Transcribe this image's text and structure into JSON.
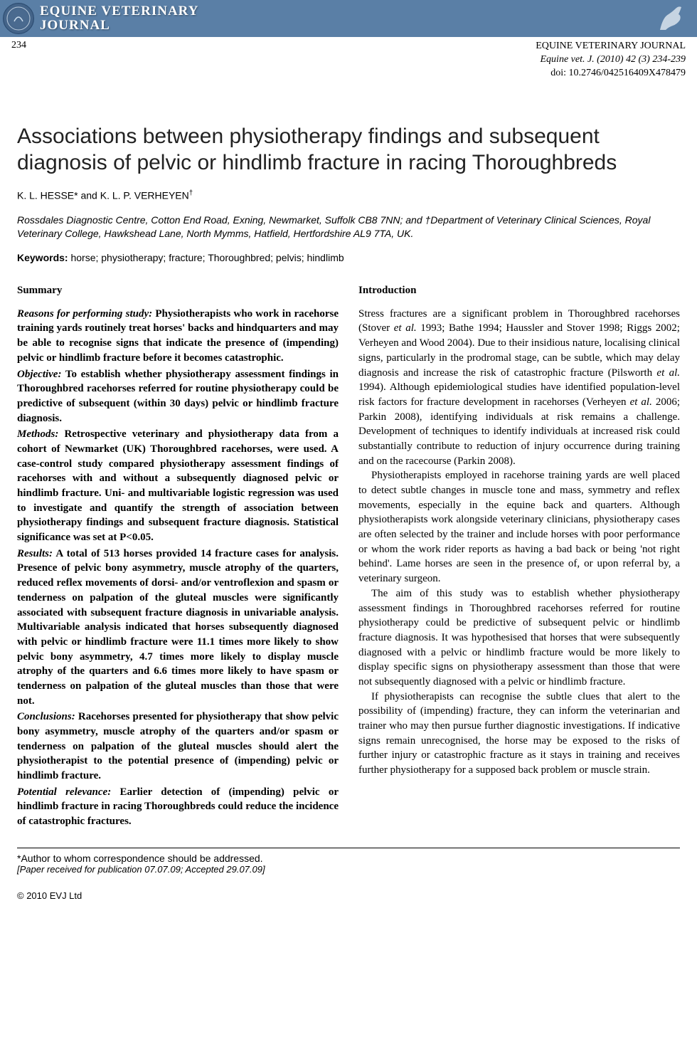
{
  "header": {
    "journal_title_line1": "EQUINE VETERINARY",
    "journal_title_line2": "JOURNAL"
  },
  "meta": {
    "page_number": "234",
    "journal_name": "EQUINE VETERINARY JOURNAL",
    "citation": "Equine vet. J. (2010) 42 (3) 234-239",
    "doi": "doi: 10.2746/042516409X478479"
  },
  "article": {
    "title": "Associations between physiotherapy findings and subsequent diagnosis of pelvic or hindlimb fracture in racing Thoroughbreds",
    "authors_html": "K. L. HESSE* and K. L. P. VERHEYEN†",
    "affiliations": "Rossdales Diagnostic Centre, Cotton End Road, Exning, Newmarket, Suffolk CB8 7NN; and †Department of Veterinary Clinical Sciences, Royal Veterinary College, Hawkshead Lane, North Mymms, Hatfield, Hertfordshire AL9 7TA, UK.",
    "keywords_label": "Keywords:",
    "keywords": " horse; physiotherapy; fracture; Thoroughbred; pelvis; hindlimb"
  },
  "summary": {
    "heading": "Summary",
    "items": [
      {
        "label": "Reasons for performing study:",
        "text": " Physiotherapists who work in racehorse training yards routinely treat horses' backs and hindquarters and may be able to recognise signs that indicate the presence of (impending) pelvic or hindlimb fracture before it becomes catastrophic."
      },
      {
        "label": "Objective:",
        "text": " To establish whether physiotherapy assessment findings in Thoroughbred racehorses referred for routine physiotherapy could be predictive of subsequent (within 30 days) pelvic or hindlimb fracture diagnosis."
      },
      {
        "label": "Methods:",
        "text": " Retrospective veterinary and physiotherapy data from a cohort of Newmarket (UK) Thoroughbred racehorses, were used. A case-control study compared physiotherapy assessment findings of racehorses with and without a subsequently diagnosed pelvic or hindlimb fracture. Uni- and multivariable logistic regression was used to investigate and quantify the strength of association between physiotherapy findings and subsequent fracture diagnosis. Statistical significance was set at P<0.05."
      },
      {
        "label": "Results:",
        "text": " A total of 513 horses provided 14 fracture cases for analysis. Presence of pelvic bony asymmetry, muscle atrophy of the quarters, reduced reflex movements of dorsi- and/or ventroflexion and spasm or tenderness on palpation of the gluteal muscles were significantly associated with subsequent fracture diagnosis in univariable analysis. Multivariable analysis indicated that horses subsequently diagnosed with pelvic or hindlimb fracture were 11.1 times more likely to show pelvic bony asymmetry, 4.7 times more likely to display muscle atrophy of the quarters and 6.6 times more likely to have spasm or tenderness on palpation of the gluteal muscles than those that were not."
      },
      {
        "label": "Conclusions:",
        "text": " Racehorses presented for physiotherapy that show pelvic bony asymmetry, muscle atrophy of the quarters and/or spasm or tenderness on palpation of the gluteal muscles should alert the physiotherapist to the potential presence of (impending) pelvic or hindlimb fracture."
      },
      {
        "label": "Potential relevance:",
        "text": " Earlier detection of (impending) pelvic or hindlimb fracture in racing Thoroughbreds could reduce the incidence of catastrophic fractures."
      }
    ]
  },
  "introduction": {
    "heading": "Introduction",
    "paragraphs": [
      "Stress fractures are a significant problem in Thoroughbred racehorses (Stover et al. 1993; Bathe 1994; Haussler and Stover 1998; Riggs 2002; Verheyen and Wood 2004). Due to their insidious nature, localising clinical signs, particularly in the prodromal stage, can be subtle, which may delay diagnosis and increase the risk of catastrophic fracture (Pilsworth et al. 1994). Although epidemiological studies have identified population-level risk factors for fracture development in racehorses (Verheyen et al. 2006; Parkin 2008), identifying individuals at risk remains a challenge. Development of techniques to identify individuals at increased risk could substantially contribute to reduction of injury occurrence during training and on the racecourse (Parkin 2008).",
      "Physiotherapists employed in racehorse training yards are well placed to detect subtle changes in muscle tone and mass, symmetry and reflex movements, especially in the equine back and quarters. Although physiotherapists work alongside veterinary clinicians, physiotherapy cases are often selected by the trainer and include horses with poor performance or whom the work rider reports as having a bad back or being 'not right behind'. Lame horses are seen in the presence of, or upon referral by, a veterinary surgeon.",
      "The aim of this study was to establish whether physiotherapy assessment findings in Thoroughbred racehorses referred for routine physiotherapy could be predictive of subsequent pelvic or hindlimb fracture diagnosis. It was hypothesised that horses that were subsequently diagnosed with a pelvic or hindlimb fracture would be more likely to display specific signs on physiotherapy assessment than those that were not subsequently diagnosed with a pelvic or hindlimb fracture.",
      "If physiotherapists can recognise the subtle clues that alert to the possibility of (impending) fracture, they can inform the veterinarian and trainer who may then pursue further diagnostic investigations. If indicative signs remain unrecognised, the horse may be exposed to the risks of further injury or catastrophic fracture as it stays in training and receives further physiotherapy for a supposed back problem or muscle strain."
    ]
  },
  "footer": {
    "correspondence": "*Author to whom correspondence should be addressed.",
    "received": "[Paper received for publication 07.07.09; Accepted 29.07.09]",
    "copyright": "© 2010 EVJ Ltd"
  },
  "colors": {
    "header_bg": "#5a7fa6",
    "text": "#000000",
    "title": "#222222"
  }
}
